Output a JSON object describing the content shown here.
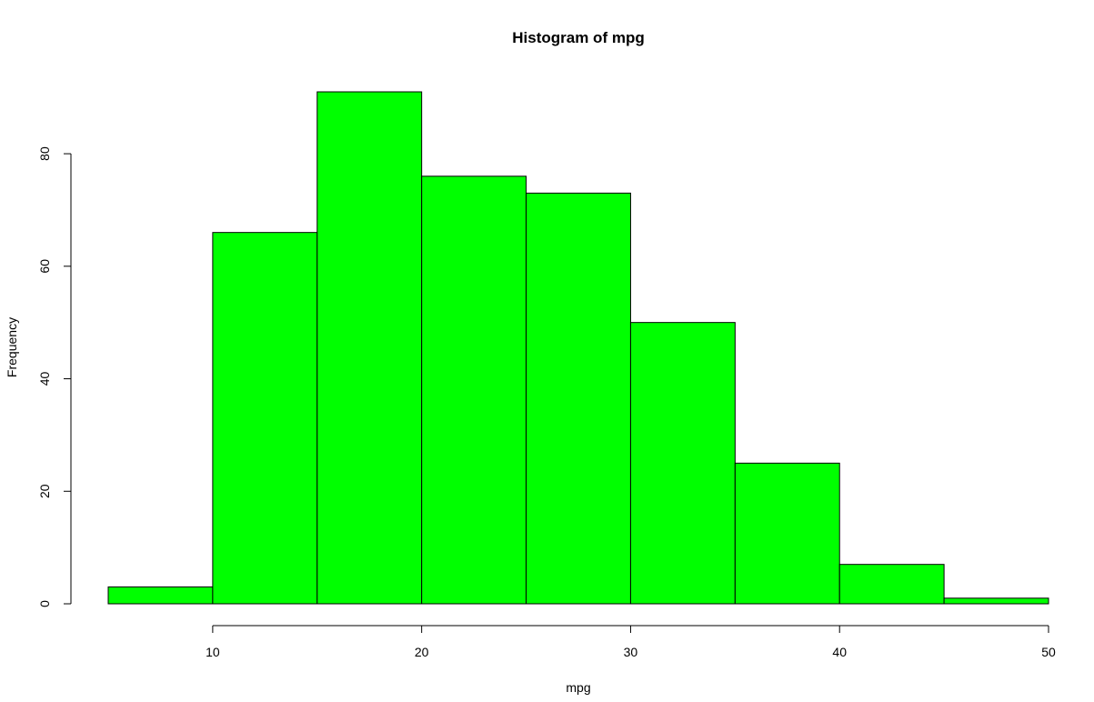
{
  "chart_data": {
    "type": "bar",
    "title": "Histogram of mpg",
    "xlabel": "mpg",
    "ylabel": "Frequency",
    "bins": [
      {
        "start": 5,
        "end": 10,
        "count": 3
      },
      {
        "start": 10,
        "end": 15,
        "count": 66
      },
      {
        "start": 15,
        "end": 20,
        "count": 91
      },
      {
        "start": 20,
        "end": 25,
        "count": 76
      },
      {
        "start": 25,
        "end": 30,
        "count": 73
      },
      {
        "start": 30,
        "end": 35,
        "count": 50
      },
      {
        "start": 35,
        "end": 40,
        "count": 25
      },
      {
        "start": 40,
        "end": 45,
        "count": 7
      },
      {
        "start": 45,
        "end": 50,
        "count": 1
      }
    ],
    "x_ticks": [
      10,
      20,
      30,
      40,
      50
    ],
    "y_ticks": [
      0,
      20,
      40,
      60,
      80
    ],
    "xlim": [
      5,
      50
    ],
    "ylim": [
      0,
      91
    ],
    "bar_color": "#00ff00",
    "border_color": "#000000",
    "grid": false,
    "legend": false
  }
}
